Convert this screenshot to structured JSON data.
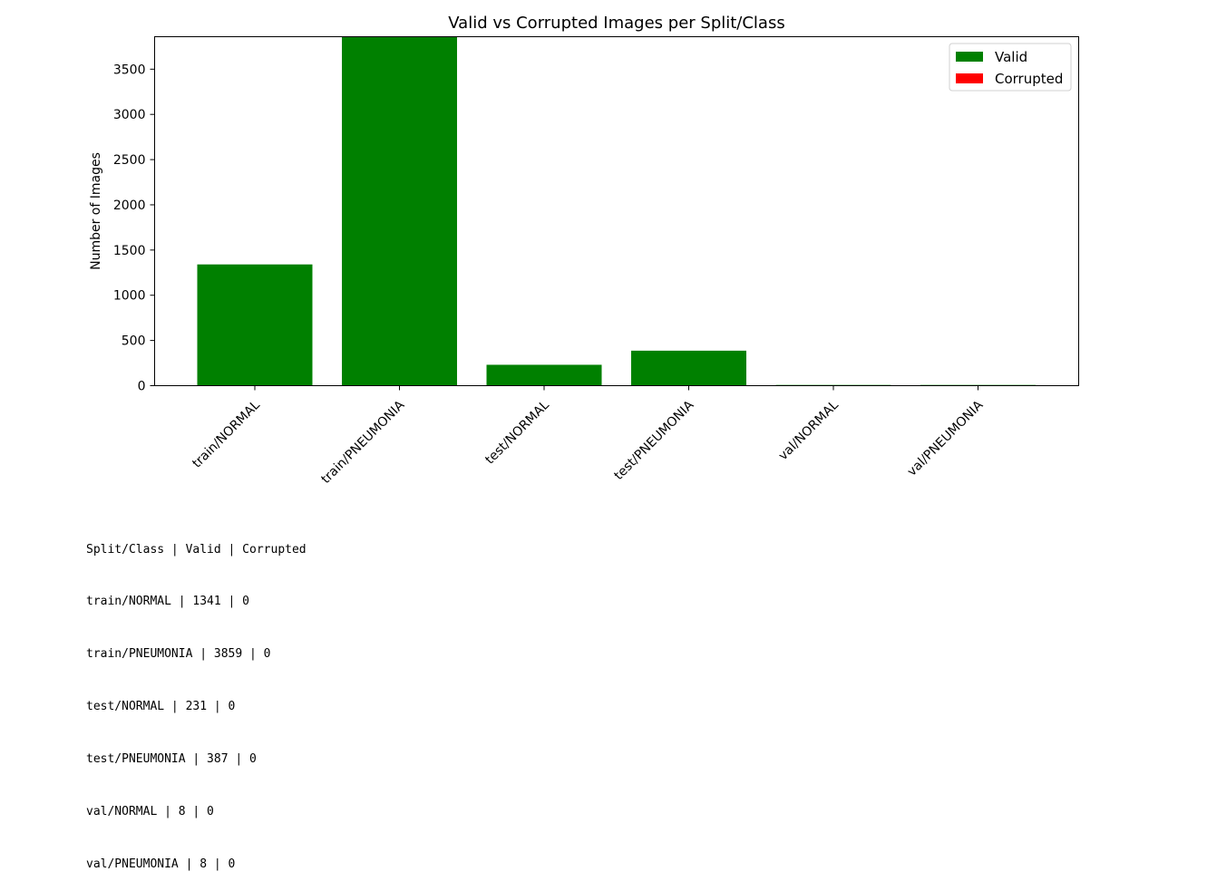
{
  "chart_data": {
    "type": "bar",
    "title": "Valid vs Corrupted Images per Split/Class",
    "xlabel": "",
    "ylabel": "Number of Images",
    "categories": [
      "train/NORMAL",
      "train/PNEUMONIA",
      "test/NORMAL",
      "test/PNEUMONIA",
      "val/NORMAL",
      "val/PNEUMONIA"
    ],
    "series": [
      {
        "name": "Valid",
        "color": "#008000",
        "values": [
          1341,
          3859,
          231,
          387,
          8,
          8
        ]
      },
      {
        "name": "Corrupted",
        "color": "#ff0000",
        "values": [
          0,
          0,
          0,
          0,
          0,
          0
        ]
      }
    ],
    "ylim": [
      0,
      3859
    ],
    "yticks": [
      0,
      500,
      1000,
      1500,
      2000,
      2500,
      3000,
      3500
    ],
    "grid": false,
    "legend": "top-right"
  },
  "output": {
    "header": "Split/Class | Valid | Corrupted",
    "rows": [
      "train/NORMAL | 1341 | 0",
      "train/PNEUMONIA | 3859 | 0",
      "test/NORMAL | 231 | 0",
      "test/PNEUMONIA | 387 | 0",
      "val/NORMAL | 8 | 0",
      "val/PNEUMONIA | 8 | 0"
    ]
  }
}
